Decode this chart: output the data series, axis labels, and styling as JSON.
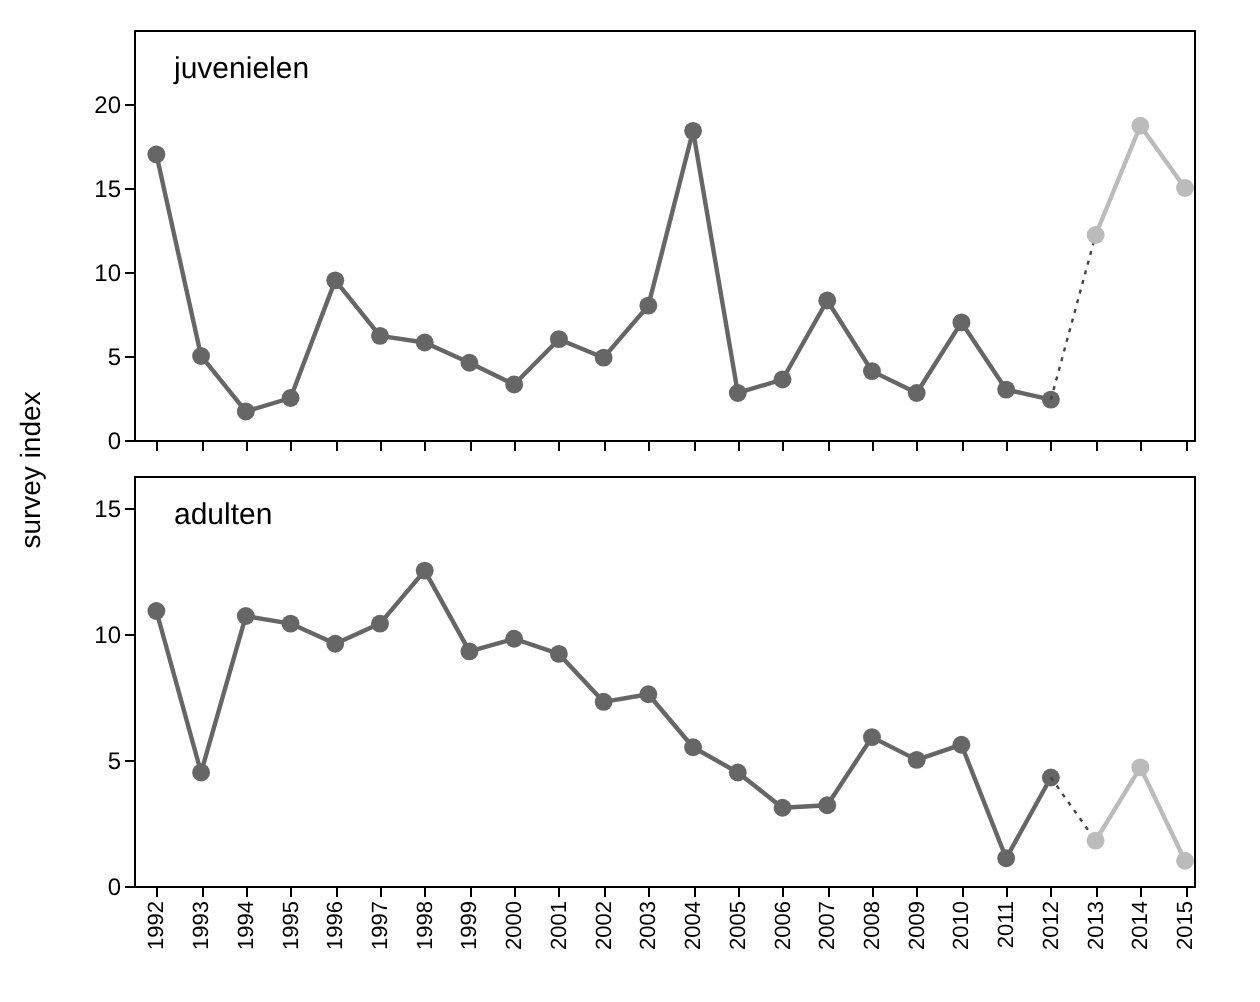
{
  "chart_data": [
    {
      "type": "line",
      "title": "juvenielen",
      "ylabel": "survey index",
      "xlim": [
        1991.5,
        2015.2
      ],
      "xticks": [
        1992,
        1993,
        1994,
        1995,
        1996,
        1997,
        1998,
        1999,
        2000,
        2001,
        2002,
        2003,
        2004,
        2005,
        2006,
        2007,
        2008,
        2009,
        2010,
        2011,
        2012,
        2013,
        2014,
        2015
      ],
      "ylim": [
        0,
        24.4
      ],
      "yticks": [
        0,
        5,
        10,
        15,
        20
      ],
      "tick_labels": "y",
      "grid": false,
      "marker": "circle",
      "line_style": "solid",
      "series": [
        {
          "color": "#666666",
          "x": [
            1992,
            1993,
            1994,
            1995,
            1996,
            1997,
            1998,
            1999,
            2000,
            2001,
            2002,
            2003,
            2004,
            2005,
            2006,
            2007,
            2008,
            2009,
            2010,
            2011,
            2012
          ],
          "values": [
            17.0,
            5.0,
            1.7,
            2.5,
            9.5,
            6.2,
            5.8,
            4.6,
            3.3,
            6.0,
            4.9,
            8.0,
            18.4,
            2.8,
            3.6,
            8.3,
            4.1,
            2.8,
            7.0,
            3.0,
            2.4
          ]
        },
        {
          "color": "#444444",
          "x": [
            2012,
            2013
          ],
          "values": [
            2.4,
            12.2
          ],
          "line_style": "dotted",
          "marker": "none"
        },
        {
          "color": "#bbbbbb",
          "x": [
            2013,
            2014,
            2015
          ],
          "values": [
            12.2,
            18.7,
            15.0
          ]
        }
      ]
    },
    {
      "type": "line",
      "title": "adulten",
      "xlim": [
        1991.5,
        2015.2
      ],
      "xticks": [
        1992,
        1993,
        1994,
        1995,
        1996,
        1997,
        1998,
        1999,
        2000,
        2001,
        2002,
        2003,
        2004,
        2005,
        2006,
        2007,
        2008,
        2009,
        2010,
        2011,
        2012,
        2013,
        2014,
        2015
      ],
      "ylim": [
        0,
        16.25
      ],
      "yticks": [
        0,
        5,
        10,
        15
      ],
      "grid": false,
      "marker": "circle",
      "line_style": "solid",
      "series": [
        {
          "color": "#666666",
          "x": [
            1992,
            1993,
            1994,
            1995,
            1996,
            1997,
            1998,
            1999,
            2000,
            2001,
            2002,
            2003,
            2004,
            2005,
            2006,
            2007,
            2008,
            2009,
            2010,
            2011,
            2012
          ],
          "values": [
            10.9,
            4.5,
            10.7,
            10.4,
            9.6,
            10.4,
            12.5,
            9.3,
            9.8,
            9.2,
            7.3,
            7.6,
            5.5,
            4.5,
            3.1,
            3.2,
            5.9,
            5.0,
            5.6,
            1.1,
            4.3
          ]
        },
        {
          "color": "#444444",
          "x": [
            2012,
            2013
          ],
          "values": [
            4.3,
            1.8
          ],
          "line_style": "dotted",
          "marker": "none"
        },
        {
          "color": "#bbbbbb",
          "x": [
            2013,
            2014,
            2015
          ],
          "values": [
            1.8,
            4.7,
            1.0
          ]
        }
      ]
    }
  ]
}
